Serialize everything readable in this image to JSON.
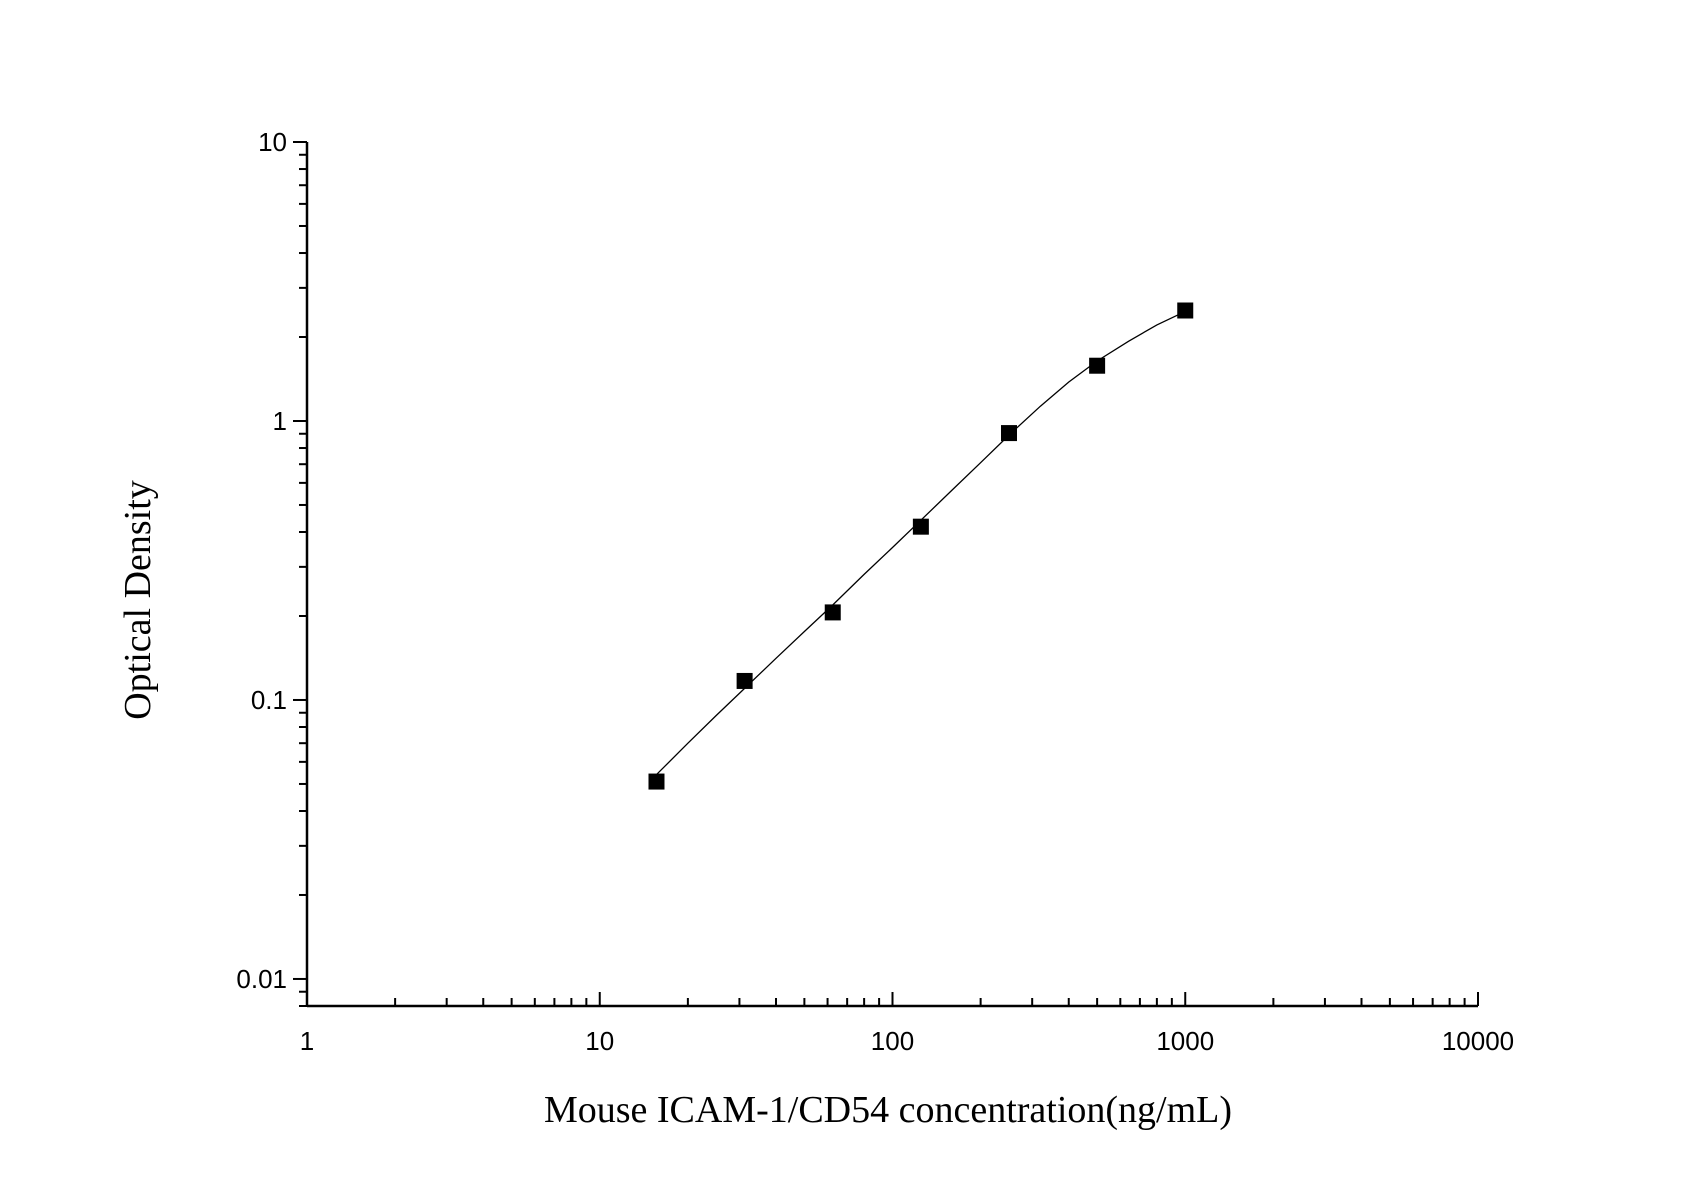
{
  "chart_data": {
    "type": "scatter",
    "title": "",
    "xlabel": "Mouse ICAM-1/CD54 concentration(ng/mL)",
    "ylabel": "Optical Density",
    "x_scale": "log",
    "y_scale": "log",
    "xlim": [
      1,
      10000
    ],
    "ylim": [
      0.008,
      10
    ],
    "x_ticks": [
      1,
      10,
      100,
      1000,
      10000
    ],
    "x_tick_labels": [
      "1",
      "10",
      "100",
      "1000",
      "10000"
    ],
    "y_ticks": [
      0.01,
      0.1,
      1,
      10
    ],
    "y_tick_labels": [
      "0.01",
      "0.1",
      "1",
      "10"
    ],
    "grid": false,
    "legend": "none",
    "marker": "filled-square",
    "marker_color": "#000000",
    "line_color": "#000000",
    "series": [
      {
        "x": [
          15.625,
          31.25,
          62.5,
          125,
          250,
          500,
          1000
        ],
        "y": [
          0.051,
          0.117,
          0.206,
          0.418,
          0.905,
          1.578,
          2.489
        ]
      }
    ],
    "fit_curve": {
      "x": [
        15.625,
        20,
        25,
        31.25,
        40,
        50,
        62.5,
        80,
        100,
        125,
        160,
        200,
        250,
        320,
        400,
        500,
        640,
        800,
        1000
      ],
      "y": [
        0.054,
        0.07,
        0.088,
        0.11,
        0.141,
        0.176,
        0.219,
        0.282,
        0.352,
        0.441,
        0.566,
        0.709,
        0.89,
        1.13,
        1.38,
        1.64,
        1.93,
        2.21,
        2.47
      ]
    }
  }
}
